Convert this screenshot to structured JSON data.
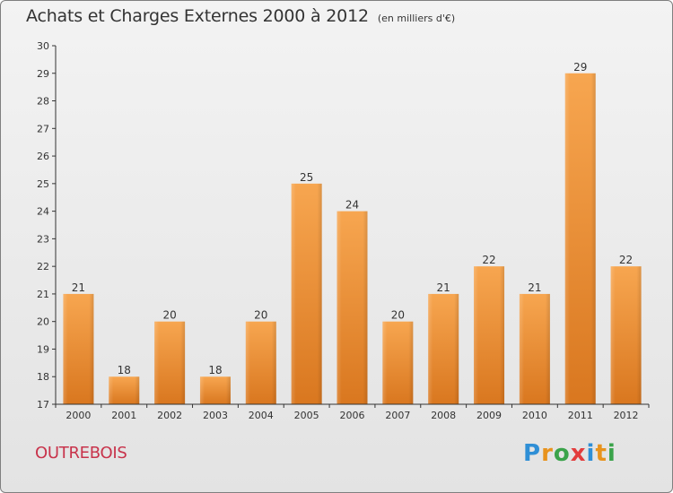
{
  "header": {
    "title": "Achats et Charges Externes 2000 à 2012",
    "unit": "(en milliers d'€)"
  },
  "footer": {
    "commune": "OUTREBOIS",
    "logo": "Proxiti"
  },
  "colors": {
    "bar_light": "#f7a650",
    "bar_dark": "#d9771f",
    "axis": "#333333",
    "commune": "#c8334b",
    "logo_blue": "#2f8fd6",
    "logo_orange": "#e8931d",
    "logo_green": "#3aa34a",
    "logo_red": "#e33d3d"
  },
  "chart_data": {
    "type": "bar",
    "title": "Achats et Charges Externes 2000 à 2012",
    "subtitle": "(en milliers d'€)",
    "xlabel": "",
    "ylabel": "",
    "categories": [
      "2000",
      "2001",
      "2002",
      "2003",
      "2004",
      "2005",
      "2006",
      "2007",
      "2008",
      "2009",
      "2010",
      "2011",
      "2012"
    ],
    "values": [
      21,
      18,
      20,
      18,
      20,
      25,
      24,
      20,
      21,
      22,
      21,
      29,
      22
    ],
    "ylim": [
      17,
      30
    ],
    "yticks": [
      17,
      18,
      19,
      20,
      21,
      22,
      23,
      24,
      25,
      26,
      27,
      28,
      29,
      30
    ],
    "grid": false,
    "legend": "none",
    "data_labels": true
  }
}
